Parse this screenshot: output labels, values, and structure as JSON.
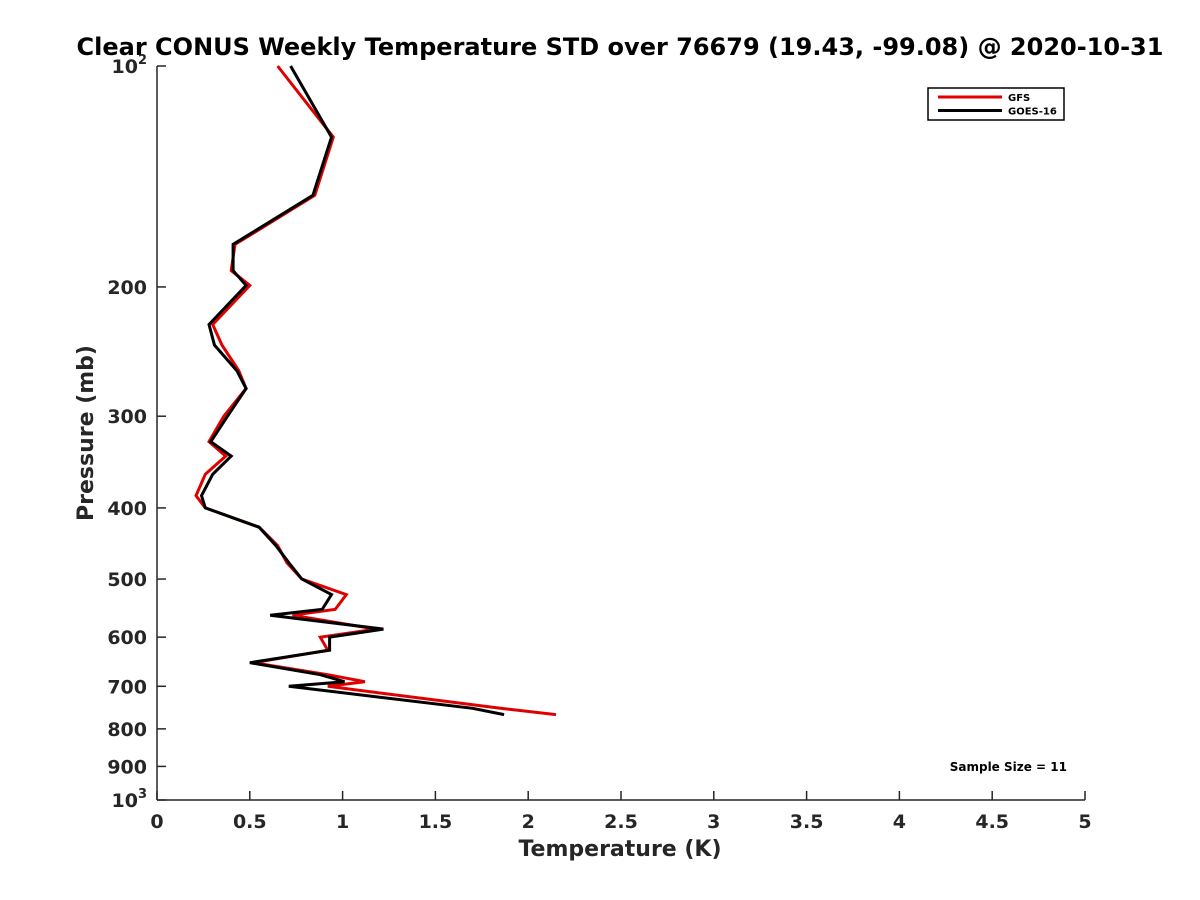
{
  "chart_data": {
    "type": "line",
    "title": "Clear CONUS Weekly Temperature STD over 76679 (19.43, -99.08) @ 2020-10-31",
    "xlabel": "Temperature (K)",
    "ylabel": "Pressure (mb)",
    "xlim": [
      0,
      5
    ],
    "ylim": [
      100,
      1000
    ],
    "y_scale": "log",
    "y_reversed": true,
    "x_ticks": [
      "0",
      "0.5",
      "1",
      "1.5",
      "2",
      "2.5",
      "3",
      "3.5",
      "4",
      "4.5",
      "5"
    ],
    "x_tick_values": [
      0,
      0.5,
      1,
      1.5,
      2,
      2.5,
      3,
      3.5,
      4,
      4.5,
      5
    ],
    "y_tick_values": [
      100,
      200,
      300,
      400,
      500,
      600,
      700,
      800,
      900,
      1000
    ],
    "y_ticks": [
      {
        "value": 100,
        "base": "10",
        "exp": "2"
      },
      {
        "value": 200,
        "label": "200"
      },
      {
        "value": 300,
        "label": "300"
      },
      {
        "value": 400,
        "label": "400"
      },
      {
        "value": 500,
        "label": "500"
      },
      {
        "value": 600,
        "label": "600"
      },
      {
        "value": 700,
        "label": "700"
      },
      {
        "value": 800,
        "label": "800"
      },
      {
        "value": 900,
        "label": "900"
      },
      {
        "value": 1000,
        "base": "10",
        "exp": "3"
      }
    ],
    "grid": false,
    "legend_position": "top-right",
    "annotation": "Sample Size = 11",
    "series": [
      {
        "name": "GFS",
        "color": "#e00000",
        "points": [
          [
            0.65,
            100
          ],
          [
            0.95,
            125
          ],
          [
            0.85,
            150
          ],
          [
            0.42,
            175
          ],
          [
            0.4,
            190
          ],
          [
            0.5,
            199
          ],
          [
            0.3,
            225
          ],
          [
            0.35,
            240
          ],
          [
            0.44,
            260
          ],
          [
            0.48,
            275
          ],
          [
            0.36,
            300
          ],
          [
            0.28,
            325
          ],
          [
            0.37,
            340
          ],
          [
            0.26,
            360
          ],
          [
            0.21,
            385
          ],
          [
            0.26,
            400
          ],
          [
            0.55,
            425
          ],
          [
            0.65,
            450
          ],
          [
            0.7,
            475
          ],
          [
            0.78,
            500
          ],
          [
            1.02,
            525
          ],
          [
            0.96,
            550
          ],
          [
            0.73,
            560
          ],
          [
            1.18,
            585
          ],
          [
            0.88,
            600
          ],
          [
            0.92,
            625
          ],
          [
            0.52,
            650
          ],
          [
            0.92,
            675
          ],
          [
            1.12,
            690
          ],
          [
            0.92,
            700
          ],
          [
            1.85,
            750
          ],
          [
            2.15,
            765
          ]
        ]
      },
      {
        "name": "GOES-16",
        "color": "#000000",
        "points": [
          [
            0.72,
            100
          ],
          [
            0.94,
            125
          ],
          [
            0.84,
            150
          ],
          [
            0.41,
            175
          ],
          [
            0.41,
            190
          ],
          [
            0.48,
            199
          ],
          [
            0.28,
            225
          ],
          [
            0.31,
            240
          ],
          [
            0.43,
            260
          ],
          [
            0.48,
            275
          ],
          [
            0.38,
            300
          ],
          [
            0.29,
            325
          ],
          [
            0.4,
            340
          ],
          [
            0.3,
            360
          ],
          [
            0.24,
            385
          ],
          [
            0.26,
            400
          ],
          [
            0.55,
            425
          ],
          [
            0.64,
            450
          ],
          [
            0.71,
            475
          ],
          [
            0.78,
            500
          ],
          [
            0.94,
            525
          ],
          [
            0.89,
            550
          ],
          [
            0.61,
            560
          ],
          [
            1.22,
            585
          ],
          [
            0.93,
            600
          ],
          [
            0.93,
            625
          ],
          [
            0.5,
            650
          ],
          [
            0.88,
            675
          ],
          [
            1.01,
            690
          ],
          [
            0.71,
            700
          ],
          [
            1.7,
            750
          ],
          [
            1.87,
            765
          ]
        ]
      }
    ]
  }
}
